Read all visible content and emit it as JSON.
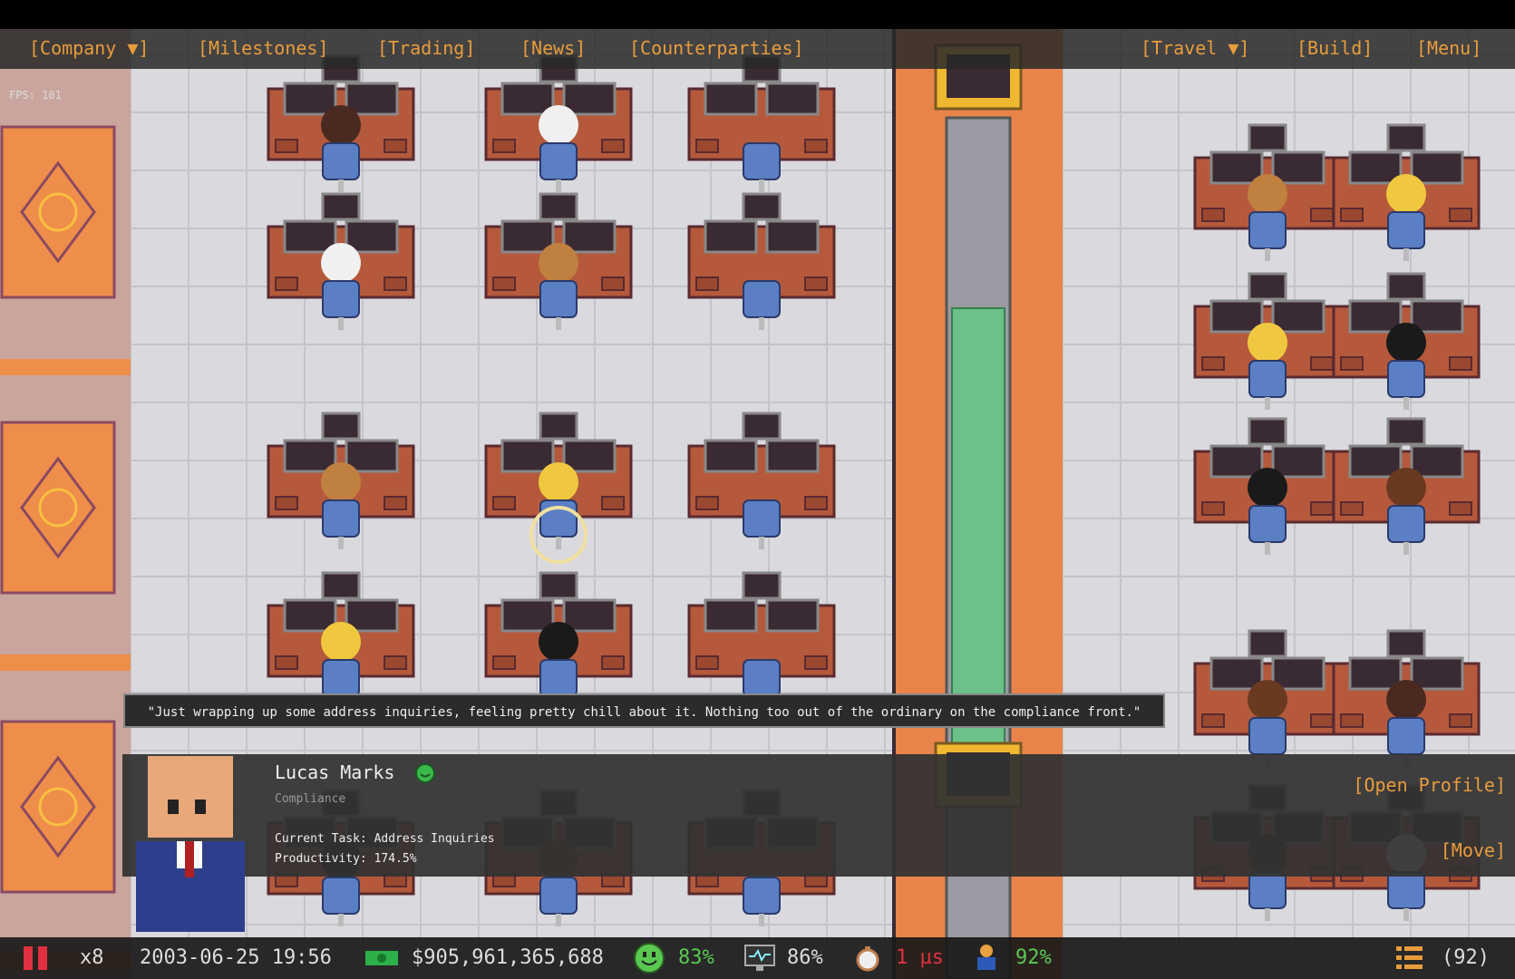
{
  "fps": "FPS: 101",
  "menu": {
    "left": [
      "[Company ▼]",
      "[Milestones]",
      "[Trading]",
      "[News]",
      "[Counterparties]"
    ],
    "right": [
      "[Travel ▼]",
      "[Build]",
      "[Menu]"
    ]
  },
  "speech": "\"Just wrapping up some address inquiries, feeling pretty chill about it. Nothing too out of the ordinary on the compliance front.\"",
  "employee": {
    "name": "Lucas Marks",
    "role": "Compliance",
    "task": "Current Task: Address Inquiries",
    "productivity": "Productivity: 174.5%",
    "actions": [
      "[Open Profile]",
      "[Move]"
    ]
  },
  "status": {
    "speed": "x8",
    "datetime": "2003-06-25 19:56",
    "cash": "$905,961,365,688",
    "happiness": "83%",
    "systems": "86%",
    "latency": "1 µs",
    "compliance": "92%",
    "queue": "(92)"
  }
}
